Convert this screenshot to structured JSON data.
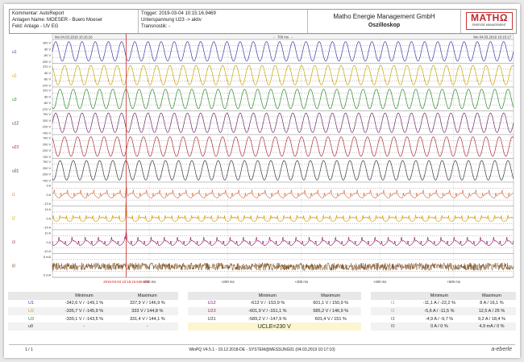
{
  "header": {
    "kommentar": "Kommentar: AutoReport",
    "anlagen": "Anlagen Name: MOESER - Buero Moeser",
    "feld": "Feld: Anlage - UV EG",
    "trigger": "Trigger: 2019-03-04 10:15:16.9469",
    "unterspannung": "Unterspannung U23 -> aktiv",
    "transnostik": "Transnostik: -",
    "company": "Matho Energie Management GmbH",
    "title": "Oszilloskop",
    "logo_text": "MATHΩ",
    "logo_sub": "ENERGIE MANAGEMENT"
  },
  "oscilloscope": {
    "start_time": "Mo 04.03.2019 10:15:16",
    "end_time": "Mo 04.03.2019 10:15:17",
    "span_label": "← 700 ms →",
    "trigger_label": "2019-03-04 10:15:16.946.972",
    "time_ticks": [
      "+100 ms",
      "+200 ms",
      "+300 ms",
      "+400 ms",
      "+500 ms"
    ],
    "channels": [
      {
        "name": "u1",
        "labels": [
          "300 V",
          "80 V",
          "-80 V",
          "-300 V"
        ],
        "color": "#3d3da8",
        "kind": "sine",
        "peak": 0.82
      },
      {
        "name": "u2",
        "labels": [
          "370 V",
          "80 V",
          "-80 V",
          "-370 V"
        ],
        "color": "#c8a800",
        "kind": "sine",
        "peak": 0.82
      },
      {
        "name": "u3",
        "labels": [
          "370 V",
          "80 V",
          "-80 V",
          "-370 V"
        ],
        "color": "#2e8b2e",
        "kind": "sine",
        "peak": 0.82
      },
      {
        "name": "u12",
        "labels": [
          "700 V",
          "200 V",
          "-200 V",
          "-700 V"
        ],
        "color": "#6b2a6b",
        "kind": "sine",
        "peak": 0.82
      },
      {
        "name": "u23",
        "labels": [
          "700 V",
          "200 V",
          "-200 V",
          "-700 V"
        ],
        "color": "#b0303a",
        "kind": "sine",
        "peak": 0.82
      },
      {
        "name": "u31",
        "labels": [
          "700 V",
          "200 V",
          "-200 V",
          "-700 V"
        ],
        "color": "#3a3a3a",
        "kind": "sine",
        "peak": 0.82
      },
      {
        "name": "i1",
        "labels": [
          "9 A",
          "0 A",
          "-13 A"
        ],
        "color": "#e07a50",
        "kind": "current",
        "peak": 0.4
      },
      {
        "name": "i2",
        "labels": [
          "14 A",
          "0 A",
          "-14 A"
        ],
        "color": "#d8a000",
        "kind": "current",
        "peak": 0.35
      },
      {
        "name": "i3",
        "labels": [
          "10 A",
          "0 A",
          "-10 A"
        ],
        "color": "#a0307a",
        "kind": "current",
        "peak": 0.4
      },
      {
        "name": "i0",
        "labels": [
          "6 mA",
          "",
          "-2 mA"
        ],
        "color": "#7a4a1a",
        "kind": "noise",
        "peak": 0.5
      }
    ]
  },
  "stats": {
    "header_min": "Minimum",
    "header_max": "Maximum",
    "rows": [
      {
        "a": [
          "U1",
          "-342,6 V / -149,1 %",
          "337,9 V / 146,9 %"
        ],
        "b": [
          "U12",
          "-613 V / -153,9 %",
          "601,1 V / 150,9 %"
        ],
        "c": [
          "I1",
          "-11,1 A / -22,2 %",
          "8 A / 16,1 %"
        ]
      },
      {
        "a": [
          "U2",
          "-335,7 V / -145,9 %",
          "333 V / 144,8 %"
        ],
        "b": [
          "U23",
          "-601,9 V / -151,1 %",
          "585,2 V / 146,9 %"
        ],
        "c": [
          "I2",
          "-5,6 A / -11,5 %",
          "12,5 A / 25 %"
        ]
      },
      {
        "a": [
          "U3",
          "-330,1 V / -143,5 %",
          "331,4 V / 144,1 %"
        ],
        "b": [
          "U31",
          "-589,2 V / -147,9 %",
          "601,4 V / 151 %"
        ],
        "c": [
          "I3",
          "-4,9 A / -9,7 %",
          "9,2 A / 18,4 %"
        ]
      },
      {
        "a": [
          "u0",
          "-",
          "-"
        ],
        "ucle": "UCLE=230 V",
        "c": [
          "I0",
          "0 A / 0 %",
          "4,9 mA / 0 %"
        ]
      }
    ]
  },
  "footer": {
    "page": "1 / 1",
    "version": "WinPQ V4.5.1 - 19.12.2018-DE - SYSTEM@MESSUNG01 (04.03.2019 10:17:10)",
    "brand": "a-eberle"
  }
}
